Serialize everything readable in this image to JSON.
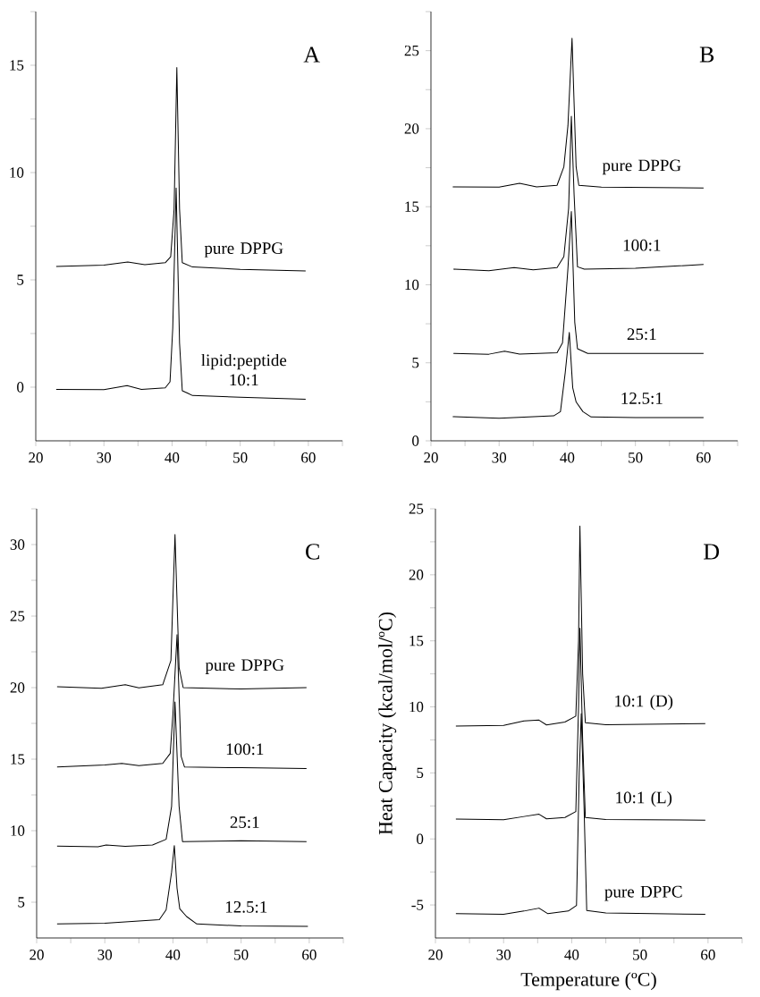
{
  "chart_data": [
    {
      "type": "line",
      "title": "A",
      "xlim": [
        20,
        65
      ],
      "ylim": [
        -2.5,
        17.5
      ],
      "xticks": [
        20,
        {
          "value": 25,
          "label": null
        },
        30,
        {
          "value": 35,
          "label": null
        },
        40,
        {
          "value": 45,
          "label": null
        },
        50,
        {
          "value": 55,
          "label": null
        },
        60,
        {
          "value": 65,
          "label": null
        }
      ],
      "yticks": [
        0,
        {
          "value": 2.5,
          "label": null
        },
        5,
        {
          "value": 7.5,
          "label": null
        },
        10,
        {
          "value": 12.5,
          "label": null
        },
        15,
        {
          "value": 17.5,
          "label": null
        }
      ],
      "marker": "none",
      "series": [
        {
          "name": "pure DPPG",
          "color": "#000000",
          "x": [
            23,
            30,
            33.5,
            36,
            39,
            39.8,
            40.3,
            40.7,
            41.1,
            41.5,
            43,
            50,
            59.6
          ],
          "values": [
            5.63,
            5.69,
            5.83,
            5.71,
            5.8,
            6.08,
            8.3,
            14.9,
            8.3,
            5.8,
            5.6,
            5.49,
            5.42
          ]
        },
        {
          "name": "lipid:peptide 10:1",
          "color": "#000000",
          "x": [
            23,
            30,
            33.4,
            35.5,
            39,
            39.7,
            40.1,
            40.6,
            41.1,
            41.5,
            42.3,
            43,
            50,
            59.6
          ],
          "values": [
            -0.1,
            -0.11,
            0.07,
            -0.1,
            -0.03,
            0.25,
            2.75,
            9.28,
            2.05,
            -0.17,
            -0.28,
            -0.39,
            -0.47,
            -0.56
          ]
        }
      ]
    },
    {
      "type": "line",
      "title": "B",
      "xlim": [
        20,
        65
      ],
      "ylim": [
        0,
        27.5
      ],
      "xticks": [
        20,
        {
          "value": 25,
          "label": null
        },
        30,
        {
          "value": 35,
          "label": null
        },
        40,
        {
          "value": 45,
          "label": null
        },
        50,
        {
          "value": 55,
          "label": null
        },
        60,
        {
          "value": 65,
          "label": null
        }
      ],
      "yticks": [
        0,
        {
          "value": 2.5,
          "label": null
        },
        5,
        {
          "value": 7.5,
          "label": null
        },
        10,
        {
          "value": 12.5,
          "label": null
        },
        15,
        {
          "value": 17.5,
          "label": null
        },
        20,
        {
          "value": 22.5,
          "label": null
        },
        25,
        {
          "value": 27.5,
          "label": null
        }
      ],
      "marker": "none",
      "series": [
        {
          "name": "pure DPPG",
          "color": "#000000",
          "x": [
            23.2,
            30,
            33,
            35.5,
            38.5,
            39.5,
            40.1,
            40.7,
            41.3,
            41.7,
            45,
            60
          ],
          "values": [
            16.27,
            16.25,
            16.5,
            16.27,
            16.37,
            17.55,
            20.2,
            25.8,
            17.55,
            16.37,
            16.25,
            16.2
          ]
        },
        {
          "name": "100:1",
          "color": "#000000",
          "x": [
            23.3,
            28.5,
            32.2,
            35,
            38.5,
            39.5,
            40.2,
            40.6,
            41.0,
            41.5,
            42.5,
            50,
            60
          ],
          "values": [
            11.0,
            10.9,
            11.1,
            10.95,
            11.1,
            11.8,
            14.9,
            20.8,
            15.8,
            11.15,
            11.0,
            11.05,
            11.3
          ]
        },
        {
          "name": "25:1",
          "color": "#000000",
          "x": [
            23.3,
            28.5,
            30.8,
            33,
            38.5,
            39.3,
            40.1,
            40.6,
            41.1,
            41.5,
            43,
            60
          ],
          "values": [
            5.6,
            5.55,
            5.74,
            5.56,
            5.64,
            6.27,
            11.05,
            14.7,
            7.6,
            5.9,
            5.6,
            5.6
          ]
        },
        {
          "name": "12.5:1",
          "color": "#000000",
          "x": [
            23.2,
            30,
            38,
            39,
            39.7,
            40.3,
            40.8,
            41.3,
            42.3,
            43.5,
            50,
            60
          ],
          "values": [
            1.55,
            1.45,
            1.6,
            1.87,
            4.36,
            6.94,
            3.4,
            2.49,
            1.87,
            1.53,
            1.49,
            1.49
          ]
        }
      ]
    },
    {
      "type": "line",
      "title": "C",
      "xlim": [
        20,
        65
      ],
      "ylim": [
        2.5,
        32.5
      ],
      "xticks": [
        20,
        {
          "value": 25,
          "label": null
        },
        30,
        {
          "value": 35,
          "label": null
        },
        40,
        {
          "value": 45,
          "label": null
        },
        50,
        {
          "value": 55,
          "label": null
        },
        60,
        {
          "value": 65,
          "label": null
        }
      ],
      "yticks": [
        5,
        {
          "value": 7.5,
          "label": null
        },
        10,
        {
          "value": 12.5,
          "label": null
        },
        15,
        {
          "value": 17.5,
          "label": null
        },
        20,
        {
          "value": 22.5,
          "label": null
        },
        25,
        {
          "value": 27.5,
          "label": null
        },
        30,
        {
          "value": 32.5,
          "label": null
        }
      ],
      "marker": "none",
      "series": [
        {
          "name": "pure DPPG",
          "color": "#000000",
          "x": [
            23,
            29.5,
            33,
            35,
            38.5,
            39.7,
            40.3,
            40.9,
            41.5,
            50,
            59.6
          ],
          "values": [
            20.07,
            19.95,
            20.2,
            19.98,
            20.2,
            21.9,
            30.7,
            21.4,
            20.0,
            19.9,
            20.0
          ]
        },
        {
          "name": "100:1",
          "color": "#000000",
          "x": [
            23,
            30,
            32.5,
            35,
            38.5,
            39.6,
            40.0,
            40.6,
            41.2,
            41.7,
            50,
            59.6
          ],
          "values": [
            14.45,
            14.6,
            14.7,
            14.55,
            14.7,
            15.4,
            18.2,
            23.7,
            15.2,
            14.45,
            14.4,
            14.35
          ]
        },
        {
          "name": "25:1",
          "color": "#000000",
          "x": [
            23,
            29,
            30.2,
            33,
            37,
            39,
            39.8,
            40.3,
            40.9,
            41.4,
            50,
            59.6
          ],
          "values": [
            8.92,
            8.87,
            9.0,
            8.9,
            9.0,
            9.4,
            11.7,
            19.0,
            11.7,
            9.24,
            9.3,
            9.24
          ]
        },
        {
          "name": "12.5:1",
          "color": "#000000",
          "x": [
            23,
            30,
            38,
            39,
            39.8,
            40.2,
            40.6,
            41.0,
            42,
            43.5,
            50,
            59.8
          ],
          "values": [
            3.48,
            3.53,
            3.78,
            4.47,
            7.1,
            8.96,
            5.97,
            4.54,
            4.0,
            3.48,
            3.34,
            3.32
          ]
        }
      ]
    },
    {
      "type": "line",
      "title": "D",
      "xlabel": "Temperature (ºC)",
      "ylabel": "Heat Capacity (kcal/mol/ºC)",
      "xlim": [
        20,
        65
      ],
      "ylim": [
        -7.5,
        25
      ],
      "xticks": [
        20,
        {
          "value": 25,
          "label": null
        },
        30,
        {
          "value": 35,
          "label": null
        },
        40,
        {
          "value": 45,
          "label": null
        },
        50,
        {
          "value": 55,
          "label": null
        },
        60,
        {
          "value": 65,
          "label": null
        }
      ],
      "yticks": [
        -5,
        {
          "value": -2.5,
          "label": null
        },
        0,
        {
          "value": 2.5,
          "label": null
        },
        5,
        {
          "value": 7.5,
          "label": null
        },
        10,
        {
          "value": 12.5,
          "label": null
        },
        15,
        {
          "value": 17.5,
          "label": null
        },
        20,
        {
          "value": 22.5,
          "label": null
        },
        25
      ],
      "marker": "none",
      "series": [
        {
          "name": "10:1 (D)",
          "color": "#000000",
          "x": [
            23,
            30,
            33,
            35.2,
            36.3,
            39,
            40.6,
            41.0,
            41.2,
            41.6,
            42,
            45,
            59.6
          ],
          "values": [
            8.55,
            8.6,
            8.93,
            9.0,
            8.63,
            8.85,
            9.3,
            15.0,
            23.7,
            12.5,
            8.8,
            8.65,
            8.73
          ]
        },
        {
          "name": "10:1 (L)",
          "color": "#000000",
          "x": [
            23,
            30,
            33,
            35.2,
            36.3,
            39,
            40.6,
            41.0,
            41.2,
            41.6,
            42,
            45,
            59.6
          ],
          "values": [
            1.5,
            1.45,
            1.7,
            1.87,
            1.52,
            1.62,
            2.07,
            10.05,
            15.96,
            7.55,
            1.62,
            1.47,
            1.42
          ]
        },
        {
          "name": "pure DPPC",
          "color": "#000000",
          "x": [
            23,
            30,
            33,
            35.2,
            36.5,
            39.5,
            40.7,
            41.1,
            41.4,
            41.8,
            42.2,
            45,
            59.6
          ],
          "values": [
            -5.66,
            -5.71,
            -5.46,
            -5.24,
            -5.66,
            -5.46,
            -5.04,
            5.06,
            9.5,
            2.57,
            -5.41,
            -5.61,
            -5.71
          ]
        }
      ]
    }
  ]
}
